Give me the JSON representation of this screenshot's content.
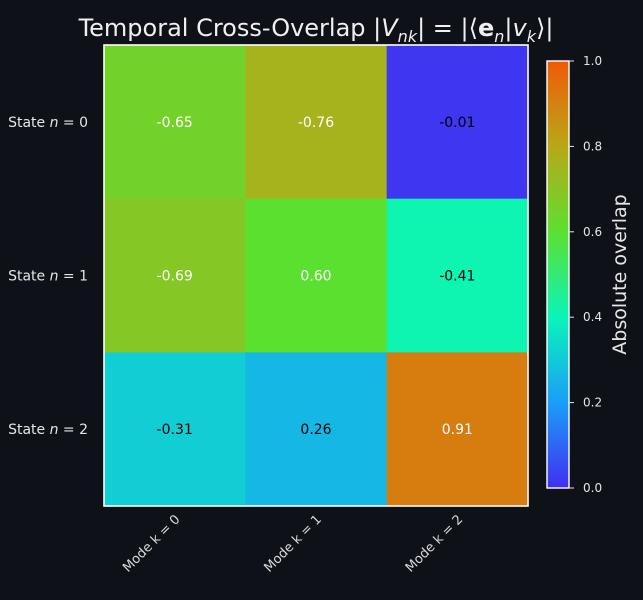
{
  "chart_data": {
    "type": "heatmap",
    "title_parts": [
      "Temporal Cross-Overlap |",
      "V",
      "nk",
      "| = |⟨",
      "e",
      "n",
      "|",
      "v",
      "k",
      "⟩|"
    ],
    "rows": [
      {
        "prefix": "State ",
        "var": "n",
        "eq": " = 0"
      },
      {
        "prefix": "State ",
        "var": "n",
        "eq": " = 1"
      },
      {
        "prefix": "State ",
        "var": "n",
        "eq": " = 2"
      }
    ],
    "columns": [
      "Mode k = 0",
      "Mode k = 1",
      "Mode k = 2"
    ],
    "values": [
      [
        -0.65,
        -0.76,
        -0.01
      ],
      [
        -0.69,
        0.6,
        -0.41
      ],
      [
        -0.31,
        0.26,
        0.91
      ]
    ],
    "value_labels": [
      [
        "-0.65",
        "-0.76",
        "-0.01"
      ],
      [
        "-0.69",
        "0.60",
        "-0.41"
      ],
      [
        "-0.31",
        "0.26",
        "0.91"
      ]
    ],
    "color_by": "absolute value",
    "colorbar": {
      "label": "Absolute overlap",
      "range": [
        0.0,
        1.0
      ],
      "ticks": [
        "0.0",
        "0.2",
        "0.4",
        "0.6",
        "0.8",
        "1.0"
      ],
      "colormap": "gist_rainbow_r",
      "stops": [
        {
          "v": 0.0,
          "color": "#4030f0"
        },
        {
          "v": 0.2,
          "color": "#1a9ef8"
        },
        {
          "v": 0.4,
          "color": "#0af5b8"
        },
        {
          "v": 0.6,
          "color": "#5ce030"
        },
        {
          "v": 0.8,
          "color": "#b8a818"
        },
        {
          "v": 1.0,
          "color": "#f05a08"
        }
      ]
    },
    "text_color_dark_cells": "#ffffff",
    "text_color_light_cells": "#000000",
    "frame_color": "#ffffff",
    "background": "#0e1117"
  }
}
